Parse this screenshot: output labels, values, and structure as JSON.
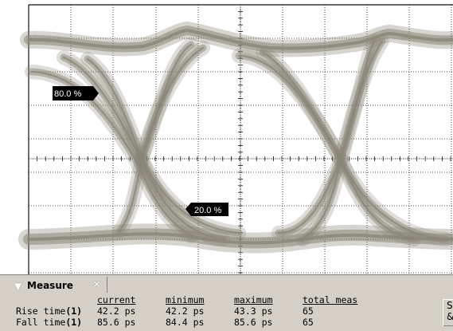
{
  "markers": {
    "upper": "80.0 %",
    "lower": "20.0 %"
  },
  "measure_panel": {
    "title": "Measure",
    "chevron_icon": "chevron-down-icon",
    "close_icon": "close-icon",
    "columns": [
      "current",
      "minimum",
      "maximum",
      "total meas"
    ],
    "rows": [
      {
        "label": "Rise time",
        "channel": "(1)",
        "current": "42.2 ps",
        "minimum": "42.2 ps",
        "maximum": "43.3 ps",
        "total": "65"
      },
      {
        "label": "Fall time",
        "channel": "(1)",
        "current": "85.6 ps",
        "minimum": "84.4 ps",
        "maximum": "85.6 ps",
        "total": "65"
      }
    ],
    "side_button": {
      "line1": "S",
      "line2": "&"
    }
  },
  "colors": {
    "screen": "#ffffff",
    "grid": "#111111",
    "trace": "#8a8677",
    "panel": "#d4d0c8",
    "marker_bg": "#000000",
    "marker_text": "#ffffff"
  }
}
